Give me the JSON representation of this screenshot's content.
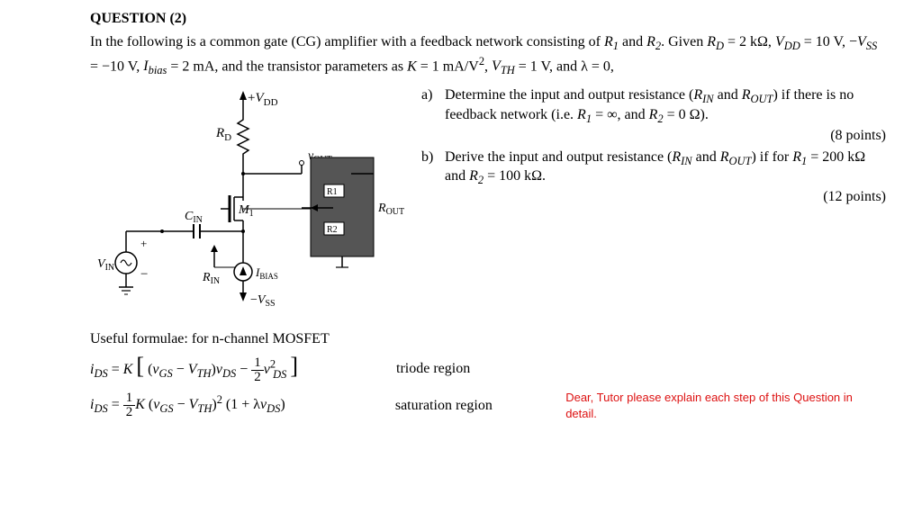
{
  "title": "QUESTION (2)",
  "intro_html": "In the following is a common gate (CG) amplifier with a feedback network consisting of <span class='italic'>R</span><span class='sub'>1</span> and <span class='italic'>R</span><span class='sub'>2</span>. Given <span class='italic'>R<span class='sub'>D</span></span> = 2 kΩ, <span class='italic'>V<span class='sub'>DD</span></span> = 10 V, −<span class='italic'>V<span class='sub'>SS</span></span> = −10 V, <span class='italic'>I<span class='sub'>bias</span></span> = 2 mA, and the transistor parameters as <span class='italic'>K</span> = 1 mA/V<span class='sup'>2</span>, <span class='italic'>V<span class='sub'>TH</span></span> = 1 V, and λ = 0,",
  "partA_html": "Determine the input and output resistance (<span class='italic'>R<span class='sub'>IN</span></span> and <span class='italic'>R<span class='sub'>OUT</span></span>) if there is no feedback network (i.e. <span class='italic'>R</span><span class='sub'>1</span> = ∞, and <span class='italic'>R</span><span class='sub'>2</span> = 0 Ω).",
  "partA_points": "(8 points)",
  "partB_html": "Derive the input and output resistance (<span class='italic'>R<span class='sub'>IN</span></span> and <span class='italic'>R<span class='sub'>OUT</span></span>) if for <span class='italic'>R</span><span class='sub'>1</span> = 200 kΩ and <span class='italic'>R</span><span class='sub'>2</span> = 100 kΩ.",
  "partB_points": "(12 points)",
  "formulae_title": "Useful formulae: for n-channel MOSFET",
  "triode_label": "triode region",
  "sat_label": "saturation region",
  "tutor_note": "Dear, Tutor please explain each step of this Question in detail.",
  "a_label": "a)",
  "b_label": "b)",
  "circuit": {
    "vdd": "+V",
    "vdd_sub": "DD",
    "rd": "R",
    "rd_sub": "D",
    "rin": "R",
    "rin_sub": "IN",
    "vin": "V",
    "vin_sub": "IN",
    "cin": "C",
    "cin_sub": "IN",
    "m1": "M",
    "m1_sub": "1",
    "ibias": "I",
    "ibias_sub": "BIAS",
    "vss": "−V",
    "vss_sub": "SS",
    "vout": "v",
    "vout_sub": "OUT",
    "rout": "R",
    "rout_sub": "OUT",
    "r1": "R1",
    "r2": "R2"
  }
}
